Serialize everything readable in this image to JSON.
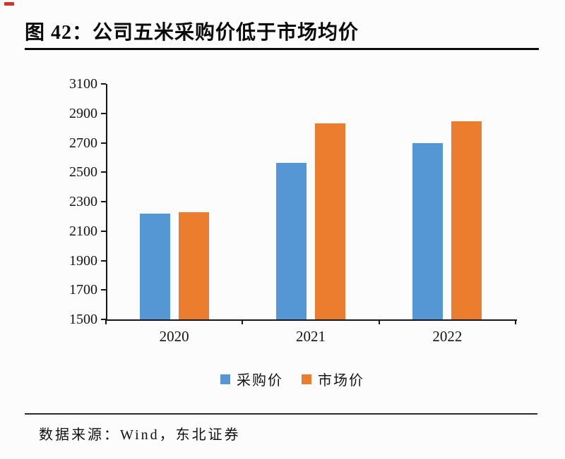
{
  "page": {
    "title_label": "图 42：公司五米采购价低于市场均价",
    "source_label": "数据来源：Wind，东北证券"
  },
  "colors": {
    "purchase_blue": "#5596D5",
    "market_orange": "#EC7D2F",
    "red_corner_mark": "#D0342C",
    "axis": "#15151F"
  },
  "chart_data": {
    "type": "bar",
    "title": "图 42：公司五米采购价低于市场均价",
    "categories": [
      "2020",
      "2021",
      "2022"
    ],
    "series": [
      {
        "name": "采购价",
        "color": "#5596D5",
        "values": [
          2220,
          2565,
          2700
        ]
      },
      {
        "name": "市场价",
        "color": "#EC7D2F",
        "values": [
          2230,
          2830,
          2845
        ]
      }
    ],
    "ylim": [
      1500,
      3100
    ],
    "yticks": [
      1500,
      1700,
      1900,
      2100,
      2300,
      2500,
      2700,
      2900,
      3100
    ],
    "xlabel": "",
    "ylabel": "",
    "grid": false,
    "legend_position": "bottom",
    "source": "数据来源：Wind，东北证券"
  }
}
